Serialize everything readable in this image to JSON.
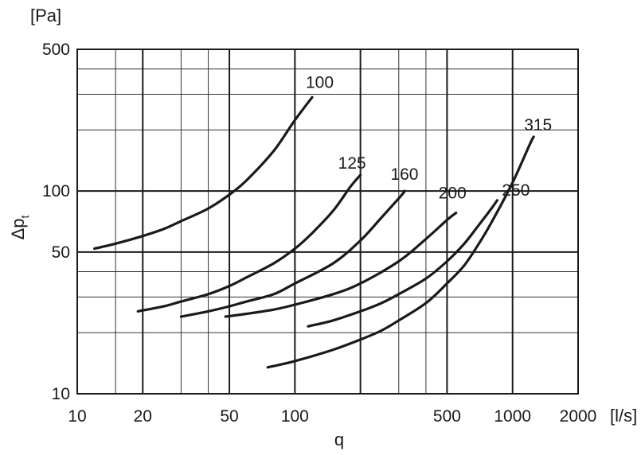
{
  "chart_data": {
    "type": "line",
    "x_scale": "log",
    "y_scale": "log",
    "xlim": [
      10,
      2000
    ],
    "ylim": [
      10,
      500
    ],
    "grid": true,
    "xlabel": "q",
    "x_unit": "[l/s]",
    "ylabel_main": "Δp",
    "ylabel_sub": "t",
    "y_unit": "[Pa]",
    "x_ticks": [
      {
        "value": 10,
        "label": "10"
      },
      {
        "value": 20,
        "label": "20"
      },
      {
        "value": 50,
        "label": "50"
      },
      {
        "value": 100,
        "label": "100"
      },
      {
        "value": 200,
        "label": ""
      },
      {
        "value": 500,
        "label": "500"
      },
      {
        "value": 1000,
        "label": "1000"
      },
      {
        "value": 2000,
        "label": "2000"
      }
    ],
    "y_ticks": [
      {
        "value": 10,
        "label": "10"
      },
      {
        "value": 50,
        "label": "50"
      },
      {
        "value": 100,
        "label": "100"
      },
      {
        "value": 500,
        "label": "500"
      }
    ],
    "x_major_grid": [
      10,
      20,
      50,
      100,
      200,
      500,
      1000,
      2000
    ],
    "x_minor_grid": [
      15,
      30,
      40,
      300,
      400
    ],
    "y_major_grid": [
      10,
      50,
      100,
      500
    ],
    "y_minor_grid": [
      20,
      30,
      40,
      200,
      300,
      400
    ],
    "series": [
      {
        "name": "100",
        "points": [
          [
            12,
            52
          ],
          [
            15,
            55
          ],
          [
            20,
            60
          ],
          [
            25,
            65
          ],
          [
            30,
            71
          ],
          [
            40,
            82
          ],
          [
            50,
            96
          ],
          [
            60,
            113
          ],
          [
            80,
            158
          ],
          [
            100,
            224
          ],
          [
            120,
            290
          ]
        ]
      },
      {
        "name": "125",
        "points": [
          [
            19,
            25.5
          ],
          [
            25,
            27
          ],
          [
            30,
            28.5
          ],
          [
            40,
            31
          ],
          [
            50,
            34
          ],
          [
            60,
            37.5
          ],
          [
            80,
            44
          ],
          [
            100,
            52
          ],
          [
            120,
            62
          ],
          [
            150,
            80
          ],
          [
            180,
            105
          ],
          [
            200,
            120
          ]
        ]
      },
      {
        "name": "160",
        "points": [
          [
            30,
            24
          ],
          [
            40,
            25.5
          ],
          [
            50,
            27
          ],
          [
            60,
            28.5
          ],
          [
            80,
            31
          ],
          [
            100,
            35
          ],
          [
            150,
            44
          ],
          [
            200,
            57
          ],
          [
            250,
            74
          ],
          [
            300,
            92
          ],
          [
            320,
            100
          ]
        ]
      },
      {
        "name": "200",
        "points": [
          [
            48,
            24
          ],
          [
            60,
            24.8
          ],
          [
            80,
            26
          ],
          [
            100,
            27.5
          ],
          [
            150,
            31
          ],
          [
            200,
            35
          ],
          [
            300,
            45
          ],
          [
            400,
            58
          ],
          [
            500,
            72
          ],
          [
            550,
            78
          ]
        ]
      },
      {
        "name": "250",
        "points": [
          [
            115,
            21.5
          ],
          [
            150,
            23
          ],
          [
            200,
            25.5
          ],
          [
            250,
            28
          ],
          [
            300,
            31
          ],
          [
            400,
            37
          ],
          [
            500,
            45
          ],
          [
            600,
            55
          ],
          [
            700,
            68
          ],
          [
            800,
            82
          ],
          [
            850,
            90
          ]
        ]
      },
      {
        "name": "315",
        "points": [
          [
            75,
            13.5
          ],
          [
            100,
            14.5
          ],
          [
            150,
            16.5
          ],
          [
            200,
            18.5
          ],
          [
            250,
            20.5
          ],
          [
            300,
            23
          ],
          [
            400,
            28
          ],
          [
            500,
            35
          ],
          [
            600,
            43
          ],
          [
            700,
            55
          ],
          [
            800,
            70
          ],
          [
            1000,
            110
          ],
          [
            1200,
            170
          ],
          [
            1250,
            185
          ]
        ]
      }
    ]
  }
}
